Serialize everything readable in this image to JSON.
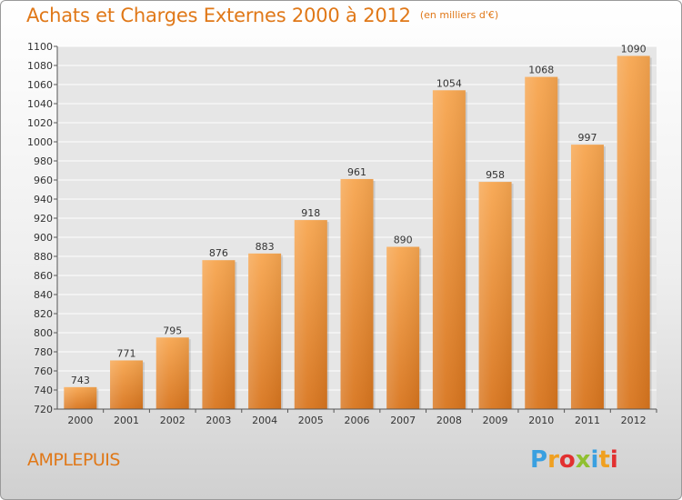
{
  "title": "Achats et Charges Externes 2000 à 2012",
  "subtitle": "(en milliers d'€)",
  "city": "AMPLEPUIS",
  "logo": {
    "letters": [
      "P",
      "r",
      "o",
      "x",
      "i",
      "t",
      "i"
    ],
    "colors": [
      "#3aa0e0",
      "#f0a020",
      "#e23030",
      "#90c030",
      "#3aa0e0",
      "#f0a020",
      "#e23030"
    ]
  },
  "colors": {
    "bar_top": "#f7a650",
    "bar_bottom": "#d8751e",
    "accent": "#e07818",
    "grid": "#ffffff"
  },
  "chart_data": {
    "type": "bar",
    "categories": [
      "2000",
      "2001",
      "2002",
      "2003",
      "2004",
      "2005",
      "2006",
      "2007",
      "2008",
      "2009",
      "2010",
      "2011",
      "2012"
    ],
    "values": [
      743,
      771,
      795,
      876,
      883,
      918,
      961,
      890,
      1054,
      958,
      1068,
      997,
      1090
    ],
    "ylim": [
      720,
      1100
    ],
    "ytick_step": 20,
    "grid": true,
    "title": "Achats et Charges Externes 2000 à 2012",
    "subtitle": "(en milliers d'€)"
  }
}
